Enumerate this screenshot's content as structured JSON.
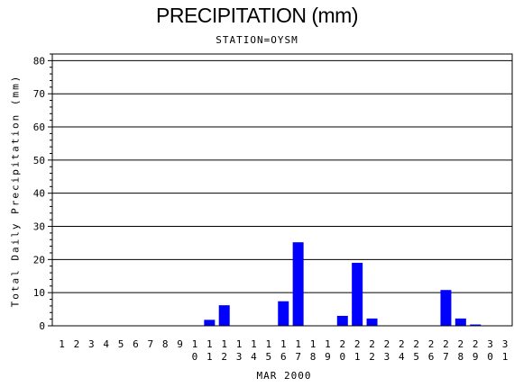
{
  "chart_data": {
    "type": "bar",
    "title": "PRECIPITATION (mm)",
    "subtitle": "STATION=OYSM",
    "ylabel": "Total Daily Precipitation (mm)",
    "xlabel": "MAR 2000",
    "ylim": [
      0,
      82
    ],
    "yticks": [
      0,
      10,
      20,
      30,
      40,
      50,
      60,
      70,
      80
    ],
    "grid": true,
    "bar_color": "#0000ff",
    "categories": [
      "1",
      "2",
      "3",
      "4",
      "5",
      "6",
      "7",
      "8",
      "9",
      "10",
      "11",
      "12",
      "13",
      "14",
      "15",
      "16",
      "17",
      "18",
      "19",
      "20",
      "21",
      "22",
      "23",
      "24",
      "25",
      "26",
      "27",
      "28",
      "29",
      "30",
      "31"
    ],
    "values": [
      0,
      0,
      0,
      0,
      0,
      0,
      0,
      0,
      0,
      0,
      1.8,
      6.2,
      0,
      0,
      0,
      7.4,
      25.2,
      0,
      0,
      3.0,
      19.0,
      2.2,
      0,
      0,
      0,
      0,
      10.8,
      2.2,
      0.4,
      0,
      0
    ]
  }
}
